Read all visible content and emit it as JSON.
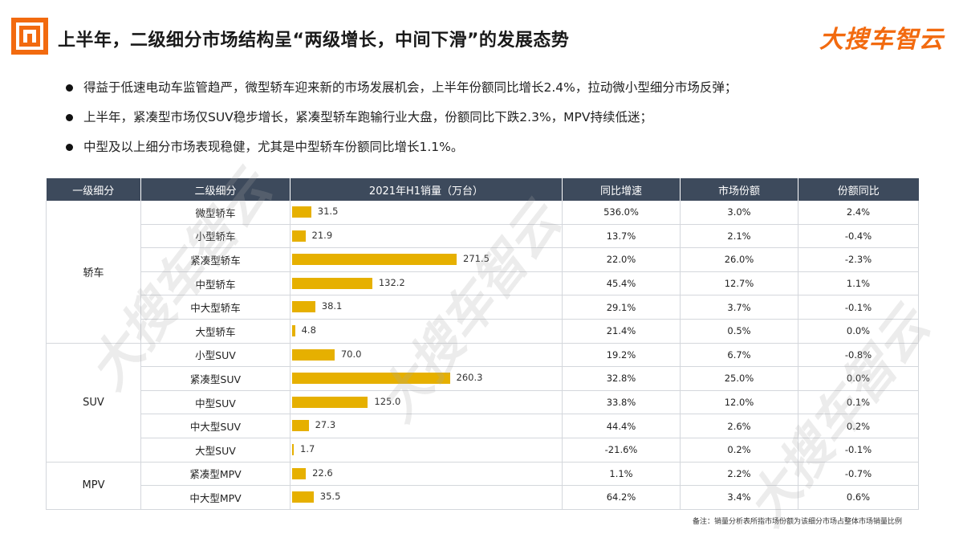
{
  "header": {
    "title": "上半年，二级细分市场结构呈“两级增长，中间下滑”的发展态势",
    "brand": "大搜车智云"
  },
  "bullets": [
    "得益于低速电动车监管趋严，微型轿车迎来新的市场发展机会，上半年份额同比增长2.4%，拉动微小型细分市场反弹；",
    "上半年，紧凑型市场仅SUV稳步增长，紧凑型轿车跑输行业大盘，份额同比下跌2.3%，MPV持续低迷；",
    "中型及以上细分市场表现稳健，尤其是中型轿车份额同比增长1.1%。"
  ],
  "table": {
    "headers": [
      "一级细分",
      "二级细分",
      "2021年H1销量（万台）",
      "同比增速",
      "市场份额",
      "份额同比"
    ]
  },
  "chart_data": {
    "type": "table",
    "bar_column_max": 271.5,
    "bar_color": "#e6b000",
    "groups": [
      {
        "level1": "轿车",
        "rows": [
          {
            "level2": "微型轿车",
            "sales": 31.5,
            "sales_label": "31.5",
            "yoy": "536.0%",
            "share": "3.0%",
            "share_yoy": "2.4%"
          },
          {
            "level2": "小型轿车",
            "sales": 21.9,
            "sales_label": "21.9",
            "yoy": "13.7%",
            "share": "2.1%",
            "share_yoy": "-0.4%"
          },
          {
            "level2": "紧凑型轿车",
            "sales": 271.5,
            "sales_label": "271.5",
            "yoy": "22.0%",
            "share": "26.0%",
            "share_yoy": "-2.3%"
          },
          {
            "level2": "中型轿车",
            "sales": 132.2,
            "sales_label": "132.2",
            "yoy": "45.4%",
            "share": "12.7%",
            "share_yoy": "1.1%"
          },
          {
            "level2": "中大型轿车",
            "sales": 38.1,
            "sales_label": "38.1",
            "yoy": "29.1%",
            "share": "3.7%",
            "share_yoy": "-0.1%"
          },
          {
            "level2": "大型轿车",
            "sales": 4.8,
            "sales_label": "4.8",
            "yoy": "21.4%",
            "share": "0.5%",
            "share_yoy": "0.0%"
          }
        ]
      },
      {
        "level1": "SUV",
        "rows": [
          {
            "level2": "小型SUV",
            "sales": 70.0,
            "sales_label": "70.0",
            "yoy": "19.2%",
            "share": "6.7%",
            "share_yoy": "-0.8%"
          },
          {
            "level2": "紧凑型SUV",
            "sales": 260.3,
            "sales_label": "260.3",
            "yoy": "32.8%",
            "share": "25.0%",
            "share_yoy": "0.0%"
          },
          {
            "level2": "中型SUV",
            "sales": 125.0,
            "sales_label": "125.0",
            "yoy": "33.8%",
            "share": "12.0%",
            "share_yoy": "0.1%"
          },
          {
            "level2": "中大型SUV",
            "sales": 27.3,
            "sales_label": "27.3",
            "yoy": "44.4%",
            "share": "2.6%",
            "share_yoy": "0.2%"
          },
          {
            "level2": "大型SUV",
            "sales": 1.7,
            "sales_label": "1.7",
            "yoy": "-21.6%",
            "share": "0.2%",
            "share_yoy": "-0.1%"
          }
        ]
      },
      {
        "level1": "MPV",
        "rows": [
          {
            "level2": "紧凑型MPV",
            "sales": 22.6,
            "sales_label": "22.6",
            "yoy": "1.1%",
            "share": "2.2%",
            "share_yoy": "-0.7%"
          },
          {
            "level2": "中大型MPV",
            "sales": 35.5,
            "sales_label": "35.5",
            "yoy": "64.2%",
            "share": "3.4%",
            "share_yoy": "0.6%"
          }
        ]
      }
    ]
  },
  "footnote": "备注：销量分析表所指市场份额为该细分市场占整体市场销量比例",
  "watermark": "大搜车智云"
}
